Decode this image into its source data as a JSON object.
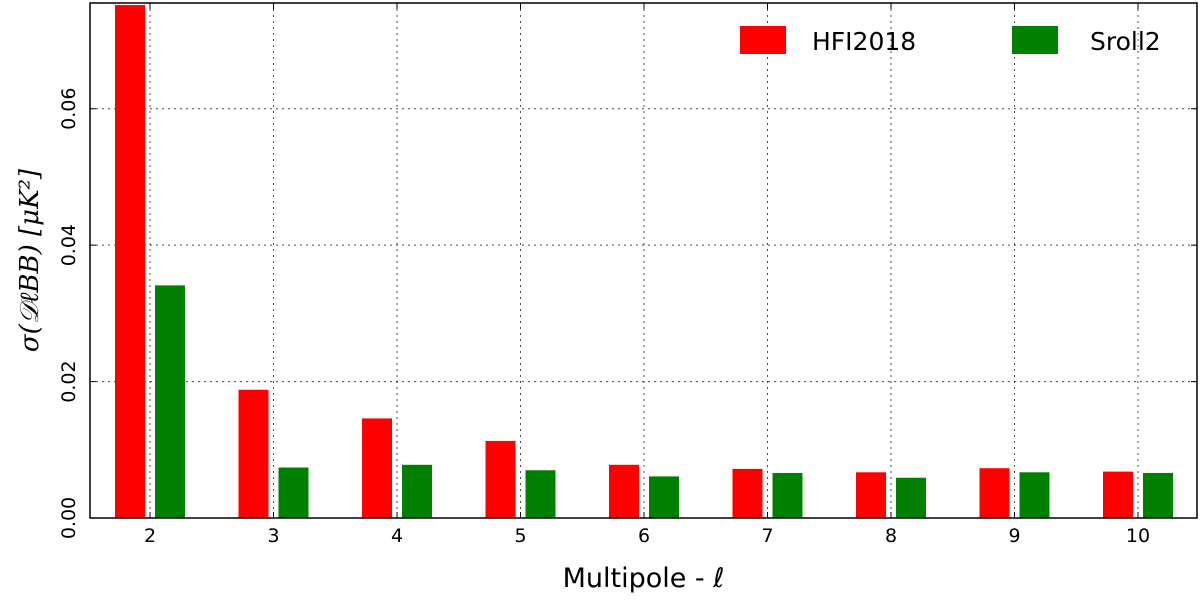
{
  "chart_data": {
    "type": "bar",
    "categories": [
      "2",
      "3",
      "4",
      "5",
      "6",
      "7",
      "8",
      "9",
      "10"
    ],
    "series": [
      {
        "name": "HFI2018",
        "color": "#ff0000",
        "values": [
          0.0752,
          0.0188,
          0.0146,
          0.0113,
          0.0078,
          0.0072,
          0.0067,
          0.0073,
          0.0068
        ]
      },
      {
        "name": "Sroll2",
        "color": "#008000",
        "values": [
          0.0341,
          0.0074,
          0.0078,
          0.007,
          0.0061,
          0.0066,
          0.0059,
          0.0067,
          0.0066
        ]
      }
    ],
    "xlabel": "Multipole - ℓ",
    "ylabel": "σ(𝒟ℓBB) [μK²]",
    "ylim": [
      0,
      0.0755
    ],
    "yticks": [
      0.0,
      0.02,
      0.04,
      0.06
    ],
    "ytick_labels": [
      "0.00",
      "0.02",
      "0.04",
      "0.06"
    ],
    "grid": true,
    "legend_position": "top-right"
  }
}
